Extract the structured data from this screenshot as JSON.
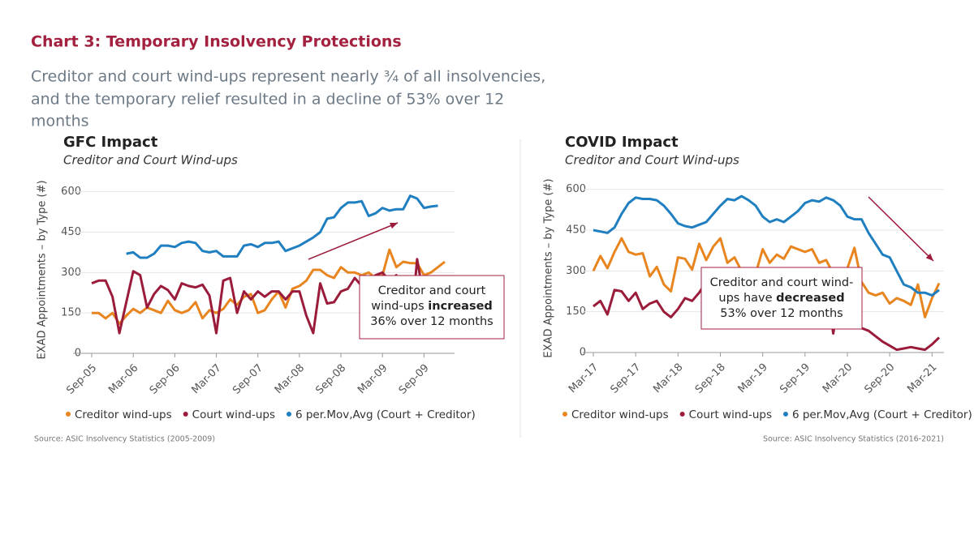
{
  "header": {
    "title": "Chart 3: Temporary Insolvency Protections",
    "subtitle": [
      "Creditor and court wind-ups represent nearly ¾ of all insolvencies,",
      "and the temporary relief resulted in a decline of 53% over 12",
      "months"
    ]
  },
  "chart_data": [
    {
      "type": "line",
      "title": "GFC Impact",
      "subtitle": "Creditor and Court Wind-ups",
      "ylabel": "EXAD Appointments – by Type (#)",
      "categories": [
        "Sep-05",
        null,
        null,
        null,
        null,
        null,
        "Mar-06",
        null,
        null,
        null,
        null,
        null,
        "Sep-06",
        null,
        null,
        null,
        null,
        null,
        "Mar-07",
        null,
        null,
        null,
        null,
        null,
        "Sep-07",
        null,
        null,
        null,
        null,
        null,
        "Mar-08",
        null,
        null,
        null,
        null,
        null,
        "Sep-08",
        null,
        null,
        null,
        null,
        null,
        "Mar-09",
        null,
        null,
        null,
        null,
        null,
        "Sep-09",
        null,
        null,
        null
      ],
      "ylim": [
        0,
        620
      ],
      "yticks": [
        0,
        150,
        300,
        450,
        600
      ],
      "grid": true,
      "series": [
        {
          "name": "Creditor wind-ups",
          "color": "#e8851f",
          "values": [
            150,
            150,
            130,
            150,
            110,
            140,
            165,
            150,
            170,
            160,
            150,
            195,
            160,
            150,
            160,
            190,
            130,
            160,
            150,
            165,
            200,
            180,
            210,
            220,
            150,
            160,
            200,
            230,
            170,
            240,
            250,
            270,
            310,
            310,
            290,
            280,
            320,
            300,
            300,
            290,
            300,
            280,
            290,
            385,
            320,
            340,
            335,
            335,
            290,
            300,
            320,
            340
          ]
        },
        {
          "name": "Court wind-ups",
          "color": "#9b1b3a",
          "values": [
            260,
            270,
            270,
            210,
            75,
            190,
            305,
            290,
            170,
            220,
            250,
            235,
            200,
            260,
            250,
            245,
            255,
            215,
            75,
            270,
            280,
            150,
            230,
            200,
            230,
            210,
            230,
            230,
            200,
            230,
            230,
            140,
            75,
            260,
            185,
            190,
            230,
            240,
            280,
            250,
            270,
            290,
            300,
            270,
            290,
            200,
            60,
            350,
            200,
            250,
            230,
            null
          ]
        },
        {
          "name": "6 per.Mov,Avg (Court + Creditor)",
          "color": "#1f7fc0",
          "values": [
            null,
            null,
            null,
            null,
            null,
            370,
            375,
            355,
            355,
            370,
            400,
            400,
            395,
            410,
            415,
            410,
            380,
            375,
            380,
            360,
            360,
            360,
            400,
            405,
            395,
            410,
            410,
            415,
            380,
            390,
            400,
            415,
            430,
            450,
            500,
            505,
            540,
            560,
            560,
            565,
            510,
            520,
            540,
            530,
            535,
            535,
            585,
            575,
            540,
            545,
            548,
            null
          ]
        }
      ],
      "annotation": [
        [
          {
            "text": "Creditor and court"
          }
        ],
        [
          {
            "text": "wind-ups "
          },
          {
            "text": "increased",
            "bold": true
          }
        ],
        [
          {
            "text": "36% over 12 months"
          }
        ]
      ],
      "source": "Source: ASIC Insolvency Statistics (2005-2009)"
    },
    {
      "type": "line",
      "title": "COVID Impact",
      "subtitle": "Creditor and Court Wind-ups",
      "ylabel": "EXAD Appointments – by Type (#)",
      "categories": [
        "Mar-17",
        null,
        null,
        null,
        null,
        null,
        "Sep-17",
        null,
        null,
        null,
        null,
        null,
        "Mar-18",
        null,
        null,
        null,
        null,
        null,
        "Sep-18",
        null,
        null,
        null,
        null,
        null,
        "Mar-19",
        null,
        null,
        null,
        null,
        null,
        "Sep-19",
        null,
        null,
        null,
        null,
        null,
        "Mar-20",
        null,
        null,
        null,
        null,
        null,
        "Sep-20",
        null,
        null,
        null,
        null,
        null,
        "Mar-21",
        null
      ],
      "ylim": [
        0,
        620
      ],
      "yticks": [
        0,
        150,
        300,
        450,
        600
      ],
      "grid": true,
      "series": [
        {
          "name": "Creditor wind-ups",
          "color": "#e8851f",
          "values": [
            300,
            355,
            310,
            370,
            420,
            370,
            360,
            365,
            280,
            315,
            250,
            225,
            350,
            345,
            305,
            400,
            340,
            390,
            420,
            330,
            350,
            300,
            310,
            290,
            380,
            330,
            360,
            345,
            390,
            380,
            370,
            380,
            330,
            340,
            290,
            300,
            310,
            385,
            260,
            220,
            210,
            220,
            180,
            200,
            190,
            175,
            250,
            130,
            200,
            255
          ]
        },
        {
          "name": "Court wind-ups",
          "color": "#9b1b3a",
          "values": [
            170,
            190,
            140,
            230,
            225,
            190,
            220,
            160,
            180,
            190,
            150,
            130,
            160,
            200,
            190,
            220,
            260,
            200,
            180,
            210,
            230,
            240,
            220,
            200,
            230,
            250,
            260,
            240,
            230,
            250,
            260,
            240,
            230,
            260,
            70,
            230,
            240,
            100,
            90,
            80,
            60,
            40,
            25,
            10,
            15,
            20,
            15,
            10,
            30,
            55
          ]
        },
        {
          "name": "6 per.Mov,Avg (Court + Creditor)",
          "color": "#1f7fc0",
          "values": [
            450,
            445,
            440,
            460,
            510,
            550,
            570,
            565,
            565,
            560,
            540,
            510,
            475,
            465,
            460,
            470,
            480,
            510,
            540,
            565,
            560,
            575,
            560,
            540,
            500,
            480,
            490,
            480,
            500,
            520,
            550,
            560,
            555,
            570,
            560,
            540,
            500,
            490,
            490,
            440,
            400,
            360,
            350,
            300,
            250,
            240,
            220,
            220,
            210,
            230
          ]
        }
      ],
      "annotation": [
        [
          {
            "text": "Creditor and court wind-"
          }
        ],
        [
          {
            "text": "ups have "
          },
          {
            "text": "decreased",
            "bold": true
          }
        ],
        [
          {
            "text": "53% over 12 months"
          }
        ]
      ],
      "source": "Source: ASIC Insolvency Statistics (2016-2021)"
    }
  ]
}
